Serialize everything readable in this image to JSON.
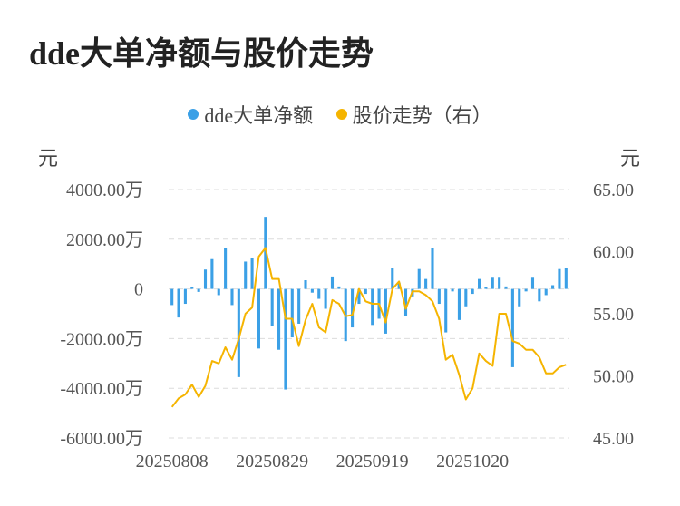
{
  "title": "dde大单净额与股价走势",
  "left_unit": "元",
  "right_unit": "元",
  "colors": {
    "bar": "#3ba0e6",
    "line": "#f5b400",
    "grid": "#dcdcdc"
  },
  "chart_data": {
    "type": "bar+line",
    "legend": [
      {
        "label": "dde大单净额",
        "color": "#3ba0e6"
      },
      {
        "label": "股价走势（右）",
        "color": "#f5b400"
      }
    ],
    "left_axis": {
      "ticks": [
        4000,
        2000,
        0,
        -2000,
        -4000,
        -6000
      ],
      "tick_labels": [
        "4000.00万",
        "2000.00万",
        "0",
        "-2000.00万",
        "-4000.00万",
        "-6000.00万"
      ],
      "ylim": [
        -6000,
        4000
      ],
      "unit": "万元"
    },
    "right_axis": {
      "ticks": [
        65,
        60,
        55,
        50,
        45
      ],
      "tick_labels": [
        "65.00",
        "60.00",
        "55.00",
        "50.00",
        "45.00"
      ],
      "ylim": [
        45,
        65
      ]
    },
    "x_tick_labels": [
      "20250808",
      "20250829",
      "20250919",
      "20251020"
    ],
    "x_tick_index": [
      0,
      15,
      30,
      45
    ],
    "series": [
      {
        "name": "dde大单净额",
        "axis": "left",
        "values": [
          -650,
          -1150,
          -600,
          80,
          -120,
          780,
          1200,
          -250,
          1650,
          -650,
          -3550,
          1100,
          1250,
          -2400,
          2900,
          -1500,
          -2450,
          -4050,
          -1950,
          -1400,
          350,
          -150,
          -400,
          -800,
          500,
          100,
          -2100,
          -1550,
          -600,
          -200,
          -1450,
          -1200,
          -1800,
          850,
          250,
          -1100,
          -300,
          800,
          400,
          1650,
          -600,
          -1750,
          -100,
          -1250,
          -700,
          -200,
          400,
          80,
          450,
          450,
          100,
          -3150,
          -700,
          -100,
          450,
          -500,
          -250,
          150,
          800,
          850
        ]
      },
      {
        "name": "股价走势（右）",
        "axis": "right",
        "values": [
          47.5,
          48.2,
          48.5,
          49.3,
          48.3,
          49.2,
          51.2,
          51.0,
          52.3,
          51.3,
          53.0,
          55.0,
          55.5,
          59.6,
          60.3,
          57.8,
          57.8,
          54.6,
          54.6,
          52.4,
          54.5,
          55.8,
          53.9,
          53.5,
          56.1,
          55.8,
          54.8,
          54.9,
          57.0,
          56.0,
          55.8,
          55.8,
          54.3,
          57.0,
          57.6,
          55.4,
          56.8,
          56.8,
          56.5,
          56.0,
          54.6,
          51.3,
          51.7,
          50.1,
          48.1,
          49.0,
          51.8,
          51.2,
          50.8,
          55.0,
          55.0,
          52.8,
          52.6,
          52.1,
          52.1,
          51.5,
          50.2,
          50.2,
          50.7,
          50.9
        ]
      }
    ]
  }
}
